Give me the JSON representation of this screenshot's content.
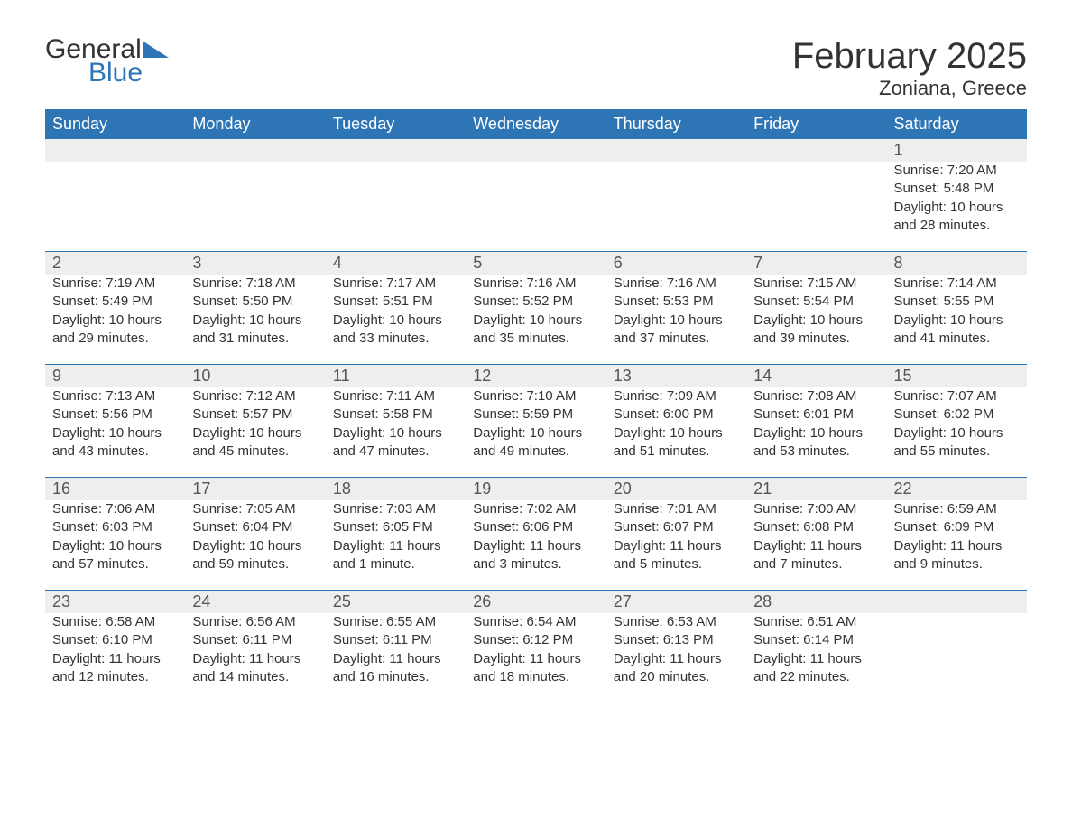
{
  "logo": {
    "general": "General",
    "blue": "Blue",
    "triangle_color": "#2e75b6"
  },
  "title": {
    "month": "February 2025",
    "location": "Zoniana, Greece"
  },
  "colors": {
    "header_bg": "#2e75b6",
    "header_text": "#ffffff",
    "daynum_bg": "#eeeeee",
    "row_border": "#2e75b6",
    "text": "#333333",
    "background": "#ffffff"
  },
  "typography": {
    "month_title_fontsize": 40,
    "location_fontsize": 22,
    "header_fontsize": 18,
    "daynum_fontsize": 18,
    "body_fontsize": 15
  },
  "columns": [
    "Sunday",
    "Monday",
    "Tuesday",
    "Wednesday",
    "Thursday",
    "Friday",
    "Saturday"
  ],
  "weeks": [
    [
      null,
      null,
      null,
      null,
      null,
      null,
      {
        "n": "1",
        "sunrise": "Sunrise: 7:20 AM",
        "sunset": "Sunset: 5:48 PM",
        "daylight": "Daylight: 10 hours and 28 minutes."
      }
    ],
    [
      {
        "n": "2",
        "sunrise": "Sunrise: 7:19 AM",
        "sunset": "Sunset: 5:49 PM",
        "daylight": "Daylight: 10 hours and 29 minutes."
      },
      {
        "n": "3",
        "sunrise": "Sunrise: 7:18 AM",
        "sunset": "Sunset: 5:50 PM",
        "daylight": "Daylight: 10 hours and 31 minutes."
      },
      {
        "n": "4",
        "sunrise": "Sunrise: 7:17 AM",
        "sunset": "Sunset: 5:51 PM",
        "daylight": "Daylight: 10 hours and 33 minutes."
      },
      {
        "n": "5",
        "sunrise": "Sunrise: 7:16 AM",
        "sunset": "Sunset: 5:52 PM",
        "daylight": "Daylight: 10 hours and 35 minutes."
      },
      {
        "n": "6",
        "sunrise": "Sunrise: 7:16 AM",
        "sunset": "Sunset: 5:53 PM",
        "daylight": "Daylight: 10 hours and 37 minutes."
      },
      {
        "n": "7",
        "sunrise": "Sunrise: 7:15 AM",
        "sunset": "Sunset: 5:54 PM",
        "daylight": "Daylight: 10 hours and 39 minutes."
      },
      {
        "n": "8",
        "sunrise": "Sunrise: 7:14 AM",
        "sunset": "Sunset: 5:55 PM",
        "daylight": "Daylight: 10 hours and 41 minutes."
      }
    ],
    [
      {
        "n": "9",
        "sunrise": "Sunrise: 7:13 AM",
        "sunset": "Sunset: 5:56 PM",
        "daylight": "Daylight: 10 hours and 43 minutes."
      },
      {
        "n": "10",
        "sunrise": "Sunrise: 7:12 AM",
        "sunset": "Sunset: 5:57 PM",
        "daylight": "Daylight: 10 hours and 45 minutes."
      },
      {
        "n": "11",
        "sunrise": "Sunrise: 7:11 AM",
        "sunset": "Sunset: 5:58 PM",
        "daylight": "Daylight: 10 hours and 47 minutes."
      },
      {
        "n": "12",
        "sunrise": "Sunrise: 7:10 AM",
        "sunset": "Sunset: 5:59 PM",
        "daylight": "Daylight: 10 hours and 49 minutes."
      },
      {
        "n": "13",
        "sunrise": "Sunrise: 7:09 AM",
        "sunset": "Sunset: 6:00 PM",
        "daylight": "Daylight: 10 hours and 51 minutes."
      },
      {
        "n": "14",
        "sunrise": "Sunrise: 7:08 AM",
        "sunset": "Sunset: 6:01 PM",
        "daylight": "Daylight: 10 hours and 53 minutes."
      },
      {
        "n": "15",
        "sunrise": "Sunrise: 7:07 AM",
        "sunset": "Sunset: 6:02 PM",
        "daylight": "Daylight: 10 hours and 55 minutes."
      }
    ],
    [
      {
        "n": "16",
        "sunrise": "Sunrise: 7:06 AM",
        "sunset": "Sunset: 6:03 PM",
        "daylight": "Daylight: 10 hours and 57 minutes."
      },
      {
        "n": "17",
        "sunrise": "Sunrise: 7:05 AM",
        "sunset": "Sunset: 6:04 PM",
        "daylight": "Daylight: 10 hours and 59 minutes."
      },
      {
        "n": "18",
        "sunrise": "Sunrise: 7:03 AM",
        "sunset": "Sunset: 6:05 PM",
        "daylight": "Daylight: 11 hours and 1 minute."
      },
      {
        "n": "19",
        "sunrise": "Sunrise: 7:02 AM",
        "sunset": "Sunset: 6:06 PM",
        "daylight": "Daylight: 11 hours and 3 minutes."
      },
      {
        "n": "20",
        "sunrise": "Sunrise: 7:01 AM",
        "sunset": "Sunset: 6:07 PM",
        "daylight": "Daylight: 11 hours and 5 minutes."
      },
      {
        "n": "21",
        "sunrise": "Sunrise: 7:00 AM",
        "sunset": "Sunset: 6:08 PM",
        "daylight": "Daylight: 11 hours and 7 minutes."
      },
      {
        "n": "22",
        "sunrise": "Sunrise: 6:59 AM",
        "sunset": "Sunset: 6:09 PM",
        "daylight": "Daylight: 11 hours and 9 minutes."
      }
    ],
    [
      {
        "n": "23",
        "sunrise": "Sunrise: 6:58 AM",
        "sunset": "Sunset: 6:10 PM",
        "daylight": "Daylight: 11 hours and 12 minutes."
      },
      {
        "n": "24",
        "sunrise": "Sunrise: 6:56 AM",
        "sunset": "Sunset: 6:11 PM",
        "daylight": "Daylight: 11 hours and 14 minutes."
      },
      {
        "n": "25",
        "sunrise": "Sunrise: 6:55 AM",
        "sunset": "Sunset: 6:11 PM",
        "daylight": "Daylight: 11 hours and 16 minutes."
      },
      {
        "n": "26",
        "sunrise": "Sunrise: 6:54 AM",
        "sunset": "Sunset: 6:12 PM",
        "daylight": "Daylight: 11 hours and 18 minutes."
      },
      {
        "n": "27",
        "sunrise": "Sunrise: 6:53 AM",
        "sunset": "Sunset: 6:13 PM",
        "daylight": "Daylight: 11 hours and 20 minutes."
      },
      {
        "n": "28",
        "sunrise": "Sunrise: 6:51 AM",
        "sunset": "Sunset: 6:14 PM",
        "daylight": "Daylight: 11 hours and 22 minutes."
      },
      null
    ]
  ]
}
